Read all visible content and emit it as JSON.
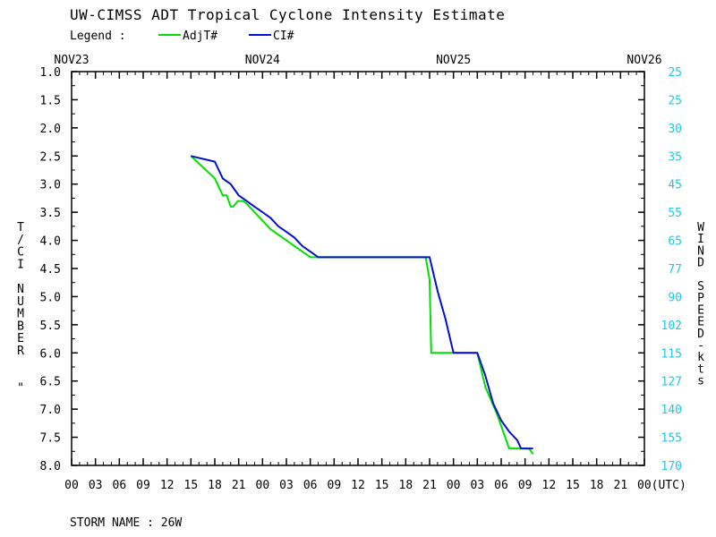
{
  "chart_data": {
    "type": "line",
    "title": "UW-CIMSS ADT Tropical Cyclone Intensity Estimate",
    "legend": {
      "label": "Legend :",
      "placement": "top-left"
    },
    "date_labels": [
      "NOV23",
      "NOV24",
      "NOV25",
      "NOV26"
    ],
    "time_labels": [
      "00",
      "03",
      "06",
      "09",
      "12",
      "15",
      "18",
      "21",
      "00",
      "03",
      "06",
      "09",
      "12",
      "15",
      "18",
      "21",
      "00",
      "03",
      "06",
      "09",
      "12",
      "15",
      "18",
      "21",
      "00(UTC)"
    ],
    "ylabel": "T/CI NUMBER  \"",
    "y2label": "WIND SPEED-kts",
    "ylim": [
      1.0,
      8.0
    ],
    "yticks": [
      "1.0",
      "1.5",
      "2.0",
      "2.5",
      "3.0",
      "3.5",
      "4.0",
      "4.5",
      "5.0",
      "5.5",
      "6.0",
      "6.5",
      "7.0",
      "7.5",
      "8.0"
    ],
    "wind_ticks": [
      "25",
      "25",
      "30",
      "35",
      "45",
      "55",
      "65",
      "77",
      "90",
      "102",
      "115",
      "127",
      "140",
      "155",
      "170"
    ],
    "x_unit": "hours since NOV23 00 UTC",
    "xlim": [
      0,
      72
    ],
    "grid": false,
    "series": [
      {
        "name": "AdjT#",
        "color": "#00e000",
        "x": [
          15.0,
          16.5,
          18.0,
          19.0,
          19.5,
          20.0,
          20.3,
          20.9,
          21.3,
          21.6,
          22.0,
          23.0,
          24.0,
          25.0,
          26.0,
          27.0,
          28.0,
          29.0,
          30.0,
          31.0,
          32.0,
          33.0,
          34.0,
          44.5,
          45.0,
          45.2,
          46.5,
          47.5,
          48.0,
          50.5,
          51.0,
          52.0,
          53.5,
          55.0,
          57.0,
          57.5,
          58.0
        ],
        "values": [
          2.5,
          2.7,
          2.9,
          3.2,
          3.2,
          3.4,
          3.4,
          3.3,
          3.3,
          3.3,
          3.35,
          3.5,
          3.65,
          3.8,
          3.9,
          4.0,
          4.1,
          4.2,
          4.3,
          4.3,
          4.3,
          4.3,
          4.3,
          4.3,
          4.7,
          6.0,
          6.0,
          6.0,
          6.0,
          6.0,
          6.0,
          6.6,
          7.1,
          7.7,
          7.7,
          7.7,
          7.8
        ]
      },
      {
        "name": "CI#",
        "color": "#0010d0",
        "x": [
          15.0,
          18.0,
          19.0,
          20.0,
          20.5,
          21.0,
          22.0,
          23.0,
          24.0,
          25.0,
          26.0,
          27.0,
          28.0,
          29.0,
          30.0,
          31.0,
          32.0,
          33.0,
          34.0,
          45.0,
          46.0,
          47.0,
          47.5,
          48.0,
          51.0,
          52.0,
          53.0,
          54.0,
          55.0,
          56.0,
          56.5,
          57.0,
          58.0
        ],
        "values": [
          2.5,
          2.6,
          2.9,
          3.0,
          3.1,
          3.2,
          3.3,
          3.4,
          3.5,
          3.6,
          3.75,
          3.85,
          3.95,
          4.1,
          4.2,
          4.3,
          4.3,
          4.3,
          4.3,
          4.3,
          4.9,
          5.4,
          5.7,
          6.0,
          6.0,
          6.4,
          6.9,
          7.2,
          7.4,
          7.55,
          7.7,
          7.7,
          7.7
        ]
      }
    ]
  },
  "footer": {
    "storm_name": "STORM NAME : 26W"
  }
}
